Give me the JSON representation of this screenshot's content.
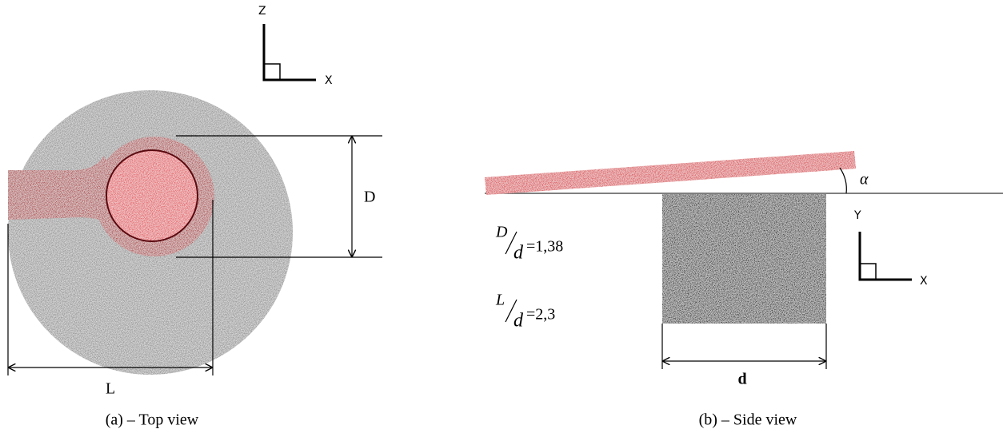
{
  "top_view": {
    "axis_z": "Z",
    "axis_x": "X",
    "dim_D": "D",
    "dim_L": "L",
    "caption": "(a) – Top view"
  },
  "side_view": {
    "angle": "α",
    "axis_y": "Y",
    "axis_x": "X",
    "ratios": [
      {
        "numerator": "D",
        "denominator": "d",
        "value": "=1,38"
      },
      {
        "numerator": "L",
        "denominator": "d",
        "value": "=2,3"
      }
    ],
    "dim_d": "d",
    "caption": "(b) – Side view"
  }
}
